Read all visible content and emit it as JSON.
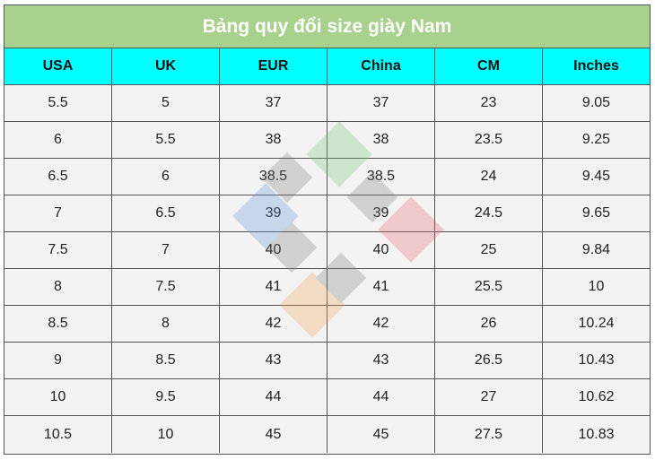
{
  "table": {
    "title": "Bảng quy đổi size giày Nam",
    "headers": [
      "USA",
      "UK",
      "EUR",
      "China",
      "CM",
      "Inches"
    ],
    "rows": [
      [
        "5.5",
        "5",
        "37",
        "37",
        "23",
        "9.05"
      ],
      [
        "6",
        "5.5",
        "38",
        "38",
        "23.5",
        "9.25"
      ],
      [
        "6.5",
        "6",
        "38.5",
        "38.5",
        "24",
        "9.45"
      ],
      [
        "7",
        "6.5",
        "39",
        "39",
        "24.5",
        "9.65"
      ],
      [
        "7.5",
        "7",
        "40",
        "40",
        "25",
        "9.84"
      ],
      [
        "8",
        "7.5",
        "41",
        "41",
        "25.5",
        "10"
      ],
      [
        "8.5",
        "8",
        "42",
        "42",
        "26",
        "10.24"
      ],
      [
        "9",
        "8.5",
        "43",
        "43",
        "26.5",
        "10.43"
      ],
      [
        "10",
        "9.5",
        "44",
        "44",
        "27",
        "10.62"
      ],
      [
        "10.5",
        "10",
        "45",
        "45",
        "27.5",
        "10.83"
      ]
    ]
  },
  "colors": {
    "title_bg": "#a9d18e",
    "header_bg": "#00ffff",
    "row_bg": "#f3f3f3"
  },
  "watermark": {
    "icon": "logo-watermark-icon"
  }
}
